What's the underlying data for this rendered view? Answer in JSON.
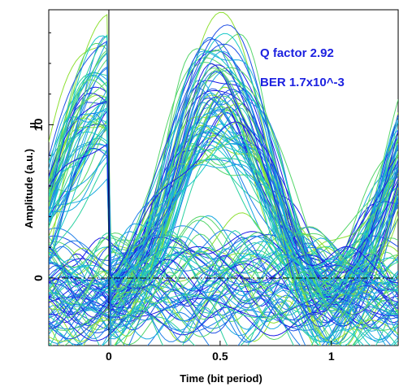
{
  "chart_data": {
    "type": "line",
    "xlabel": "Time (bit period)",
    "ylabel": "Amplitude (a.u.)",
    "xlim": [
      -0.27,
      1.3
    ],
    "ylim": [
      -4.4,
      17.5
    ],
    "x_ticks": [
      {
        "value": 0,
        "label": "0"
      },
      {
        "value": 0.5,
        "label": "0.5"
      },
      {
        "value": 1,
        "label": "1"
      }
    ],
    "y_ticks": [
      {
        "value": 0,
        "label": "0"
      },
      {
        "value": 10,
        "label": "10"
      }
    ],
    "y_unit_label": "µ",
    "annotations": {
      "q_factor": "Q factor 2.92",
      "ber": "BER 1.7x10^-3"
    },
    "grid": false,
    "reference_lines": [
      {
        "orientation": "horizontal",
        "y": 0
      },
      {
        "orientation": "vertical",
        "x": 0
      }
    ],
    "trace_count": 140,
    "bit_pattern": "eye diagram: overlaid noisy traces, ones peak near 11 (x=0.5), zeros near 0",
    "colors": [
      "#1a1ae6",
      "#1f4fe6",
      "#1f7ee8",
      "#18a8e0",
      "#18c8c8",
      "#2ad1a0",
      "#55d66a",
      "#8ee032"
    ]
  }
}
